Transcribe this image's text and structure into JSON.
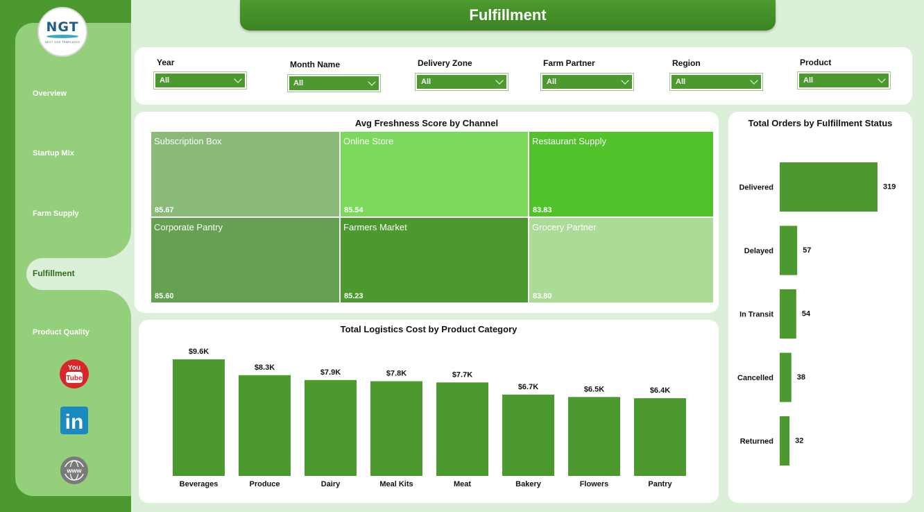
{
  "header": {
    "title": "Fulfillment"
  },
  "logo": {
    "text": "NGT",
    "subtitle": "NEXT GEN TEMPLATES"
  },
  "sidebar": {
    "items": [
      {
        "label": "Overview",
        "active": false
      },
      {
        "label": "Startup Mix",
        "active": false
      },
      {
        "label": "Farm Supply",
        "active": false
      },
      {
        "label": "Fulfillment",
        "active": true
      },
      {
        "label": "Product Quality",
        "active": false
      }
    ],
    "social": [
      {
        "icon": "youtube-icon",
        "text": "You Tube",
        "color": "#d9262b"
      },
      {
        "icon": "linkedin-icon",
        "text": "in",
        "color": "#1b8ac0"
      },
      {
        "icon": "globe-icon",
        "text": "www",
        "color": "#7a7a7a"
      }
    ]
  },
  "filters": [
    {
      "label": "Year",
      "value": "All"
    },
    {
      "label": "Month Name",
      "value": "All"
    },
    {
      "label": "Delivery Zone",
      "value": "All"
    },
    {
      "label": "Farm Partner",
      "value": "All"
    },
    {
      "label": "Region",
      "value": "All"
    },
    {
      "label": "Product",
      "value": "All"
    }
  ],
  "colors": {
    "accent": "#4c9a2f",
    "sidebar_light": "#94cf7c",
    "background": "#dcefd8"
  },
  "chart_data": [
    {
      "type": "treemap",
      "title": "Avg Freshness Score by Channel",
      "cells": [
        {
          "name": "Subscription Box",
          "value": 85.67,
          "label": "85.67",
          "color": "#8aba77"
        },
        {
          "name": "Online Store",
          "value": 85.54,
          "label": "85.54",
          "color": "#7bd95b"
        },
        {
          "name": "Restaurant Supply",
          "value": 83.83,
          "label": "83.83",
          "color": "#52c22b"
        },
        {
          "name": "Corporate Pantry",
          "value": 85.6,
          "label": "85.60",
          "color": "#66a053"
        },
        {
          "name": "Farmers Market",
          "value": 85.23,
          "label": "85.23",
          "color": "#4c9a2f"
        },
        {
          "name": "Grocery Partner",
          "value": 83.8,
          "label": "83.80",
          "color": "#acdb97"
        }
      ]
    },
    {
      "type": "bar",
      "orientation": "vertical",
      "title": "Total Logistics Cost by Product Category",
      "categories": [
        "Beverages",
        "Produce",
        "Dairy",
        "Meal Kits",
        "Meat",
        "Bakery",
        "Flowers",
        "Pantry"
      ],
      "values": [
        9.6,
        8.3,
        7.9,
        7.8,
        7.7,
        6.7,
        6.5,
        6.4
      ],
      "labels": [
        "$9.6K",
        "$8.3K",
        "$7.9K",
        "$7.8K",
        "$7.7K",
        "$6.7K",
        "$6.5K",
        "$6.4K"
      ],
      "unit": "K USD",
      "ylim": [
        0,
        10
      ]
    },
    {
      "type": "bar",
      "orientation": "horizontal",
      "title": "Total Orders by Fulfillment Status",
      "categories": [
        "Delivered",
        "Delayed",
        "In Transit",
        "Cancelled",
        "Returned"
      ],
      "values": [
        319,
        57,
        54,
        38,
        32
      ],
      "labels": [
        "319",
        "57",
        "54",
        "38",
        "32"
      ],
      "xlim": [
        0,
        319
      ]
    }
  ]
}
